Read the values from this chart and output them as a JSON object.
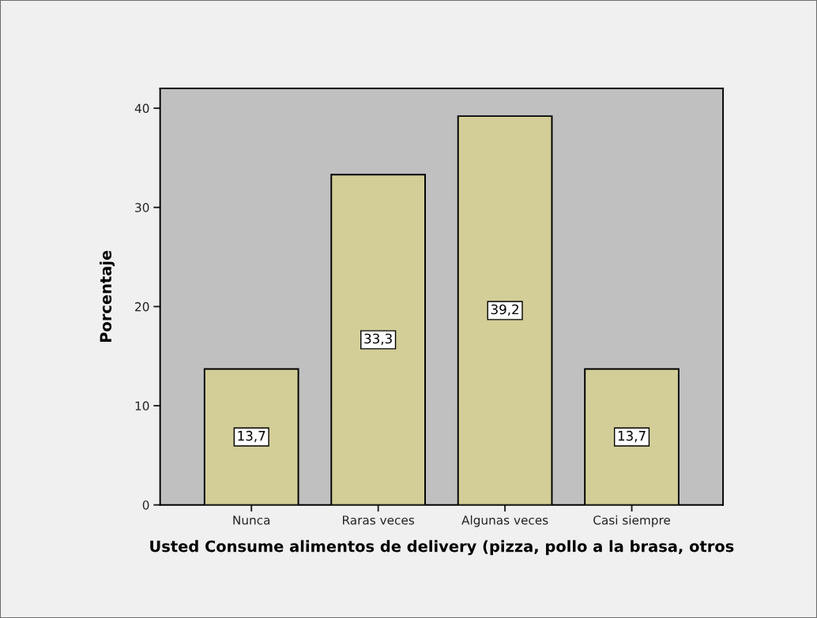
{
  "chart_data": {
    "type": "bar",
    "xlabel": "Usted Consume alimentos de delivery (pizza, pollo a la brasa, otros",
    "ylabel": "Porcentaje",
    "categories": [
      "Nunca",
      "Raras veces",
      "Algunas veces",
      "Casi siempre"
    ],
    "values": [
      13.7,
      33.3,
      39.2,
      13.7
    ],
    "value_labels": [
      "13,7",
      "33,3",
      "39,2",
      "13,7"
    ],
    "color": "#d3ce97",
    "ylim": [
      0,
      42
    ],
    "yticks": [
      0,
      10,
      20,
      30,
      40
    ],
    "grid": false
  }
}
